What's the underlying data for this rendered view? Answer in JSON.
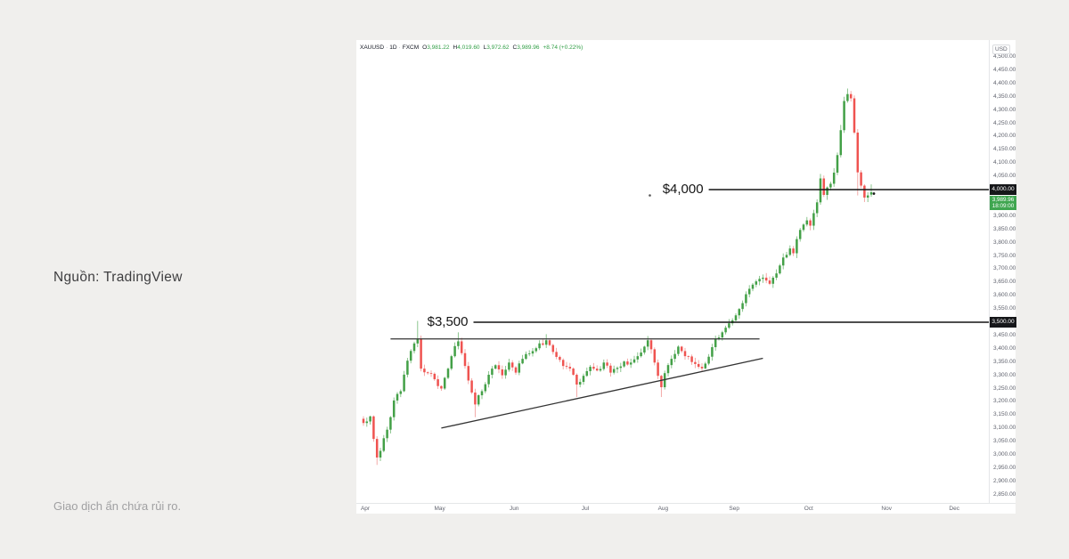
{
  "page": {
    "source_caption": "Nguồn: TradingView",
    "disclaimer": "Giao dịch ẩn chứa rủi ro."
  },
  "chart": {
    "legend": {
      "symbol": "XAUUSD",
      "separator": "·",
      "interval": "1D",
      "exchange": "FXCM",
      "ohlc": [
        {
          "k": "O",
          "v": "3,981.22"
        },
        {
          "k": "H",
          "v": "4,019.60"
        },
        {
          "k": "L",
          "v": "3,972.62"
        },
        {
          "k": "C",
          "v": "3,989.96"
        }
      ],
      "change": "+8.74 (+0.22%)"
    },
    "axis_currency": "USD",
    "axis_badges": {
      "level_4000": "4,000.00",
      "level_3500": "3,500.00",
      "last_price": "3,989.96",
      "bar_countdown": "18:09:00"
    }
  },
  "chart_data": {
    "type": "candlestick",
    "symbol": "XAUUSD",
    "interval": "1D",
    "exchange": "FXCM",
    "unit": "USD",
    "grid": false,
    "y_axis": {
      "min": 2850,
      "max": 4500,
      "step": 50
    },
    "x_axis": {
      "labels": [
        "Apr",
        "May",
        "Jun",
        "Jul",
        "Aug",
        "Sep",
        "Oct",
        "Nov",
        "Dec"
      ],
      "start_days": [
        0,
        22,
        44,
        65,
        88,
        109,
        131,
        154,
        174
      ]
    },
    "days": 150,
    "last_ohlc": {
      "open": 3981.22,
      "high": 4019.6,
      "low": 3972.62,
      "close": 3989.96,
      "change": 8.74,
      "change_pct": 0.22
    },
    "levels": [
      {
        "label": "$4,000",
        "price": 4000,
        "from_day": 102,
        "badge": "4,000.00"
      },
      {
        "label": "$3,500",
        "price": 3500,
        "from_day": 32.5,
        "badge": "3,500.00"
      }
    ],
    "trendlines": [
      {
        "name": "triangle-resistance",
        "from_day": 8,
        "from_price": 3437,
        "to_day": 117,
        "to_price": 3437
      },
      {
        "name": "triangle-support",
        "from_day": 23,
        "from_price": 3101,
        "to_day": 118,
        "to_price": 3364
      }
    ],
    "price_path_anchors": [
      [
        0,
        3120
      ],
      [
        2,
        3145
      ],
      [
        3,
        3060
      ],
      [
        4,
        2990
      ],
      [
        5,
        3015
      ],
      [
        7,
        3095
      ],
      [
        9,
        3205
      ],
      [
        11,
        3240
      ],
      [
        13,
        3355
      ],
      [
        15,
        3420
      ],
      [
        16,
        3438
      ],
      [
        17,
        3325
      ],
      [
        19,
        3308
      ],
      [
        21,
        3285
      ],
      [
        23,
        3250
      ],
      [
        25,
        3325
      ],
      [
        27,
        3410
      ],
      [
        28,
        3428
      ],
      [
        30,
        3335
      ],
      [
        32,
        3235
      ],
      [
        33,
        3190
      ],
      [
        35,
        3240
      ],
      [
        37,
        3302
      ],
      [
        39,
        3338
      ],
      [
        41,
        3300
      ],
      [
        43,
        3348
      ],
      [
        45,
        3310
      ],
      [
        47,
        3362
      ],
      [
        49,
        3382
      ],
      [
        51,
        3402
      ],
      [
        54,
        3432
      ],
      [
        56,
        3388
      ],
      [
        58,
        3358
      ],
      [
        60,
        3332
      ],
      [
        62,
        3302
      ],
      [
        63,
        3265
      ],
      [
        65,
        3298
      ],
      [
        67,
        3332
      ],
      [
        69,
        3318
      ],
      [
        71,
        3348
      ],
      [
        73,
        3310
      ],
      [
        75,
        3328
      ],
      [
        77,
        3352
      ],
      [
        79,
        3348
      ],
      [
        81,
        3372
      ],
      [
        83,
        3408
      ],
      [
        84,
        3432
      ],
      [
        85,
        3398
      ],
      [
        86,
        3348
      ],
      [
        87,
        3298
      ],
      [
        88,
        3255
      ],
      [
        89,
        3308
      ],
      [
        91,
        3362
      ],
      [
        93,
        3408
      ],
      [
        95,
        3372
      ],
      [
        97,
        3350
      ],
      [
        99,
        3332
      ],
      [
        100,
        3326
      ],
      [
        101,
        3344
      ],
      [
        102,
        3370
      ],
      [
        103,
        3406
      ],
      [
        104,
        3438
      ],
      [
        106,
        3462
      ],
      [
        108,
        3496
      ],
      [
        110,
        3526
      ],
      [
        112,
        3572
      ],
      [
        114,
        3626
      ],
      [
        116,
        3654
      ],
      [
        118,
        3668
      ],
      [
        120,
        3645
      ],
      [
        122,
        3684
      ],
      [
        124,
        3744
      ],
      [
        126,
        3778
      ],
      [
        127,
        3760
      ],
      [
        129,
        3848
      ],
      [
        131,
        3884
      ],
      [
        132,
        3864
      ],
      [
        134,
        3952
      ],
      [
        135,
        4042
      ],
      [
        136,
        3980
      ],
      [
        137,
        4008
      ],
      [
        138,
        4022
      ],
      [
        139,
        4064
      ],
      [
        140,
        4130
      ],
      [
        141,
        4224
      ],
      [
        142,
        4334
      ],
      [
        143,
        4360
      ],
      [
        144,
        4344
      ],
      [
        145,
        4215
      ],
      [
        146,
        4065
      ],
      [
        147,
        4015
      ],
      [
        148,
        3970
      ],
      [
        149,
        3978
      ],
      [
        150,
        3989.96
      ]
    ],
    "wick_overrides": {
      "4": {
        "low": 2962
      },
      "16": {
        "high": 3505
      },
      "28": {
        "high": 3462
      },
      "33": {
        "low": 3142
      },
      "54": {
        "high": 3455
      },
      "63": {
        "low": 3218
      },
      "84": {
        "high": 3448
      },
      "88": {
        "low": 3218
      },
      "135": {
        "high": 4059
      },
      "143": {
        "high": 4381
      },
      "146": {
        "low": 3978
      },
      "150": {
        "open": 3981.22,
        "high": 4019.6,
        "low": 3972.62,
        "close": 3989.96
      }
    },
    "colors": {
      "up_body": "#43a047",
      "up_wick": "#7fbf82",
      "down_body": "#ef5350",
      "down_wick": "#f2a09e",
      "level_line": "#141414",
      "trend_line": "#333333"
    }
  }
}
